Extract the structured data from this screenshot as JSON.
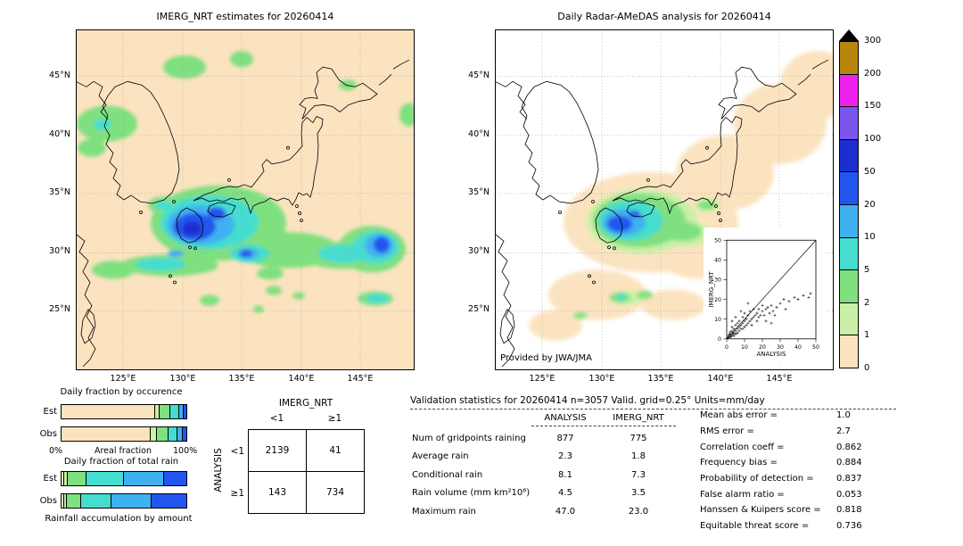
{
  "axes": {
    "lon_labels": [
      "125°E",
      "130°E",
      "135°E",
      "140°E",
      "145°E"
    ],
    "lat_labels": [
      "45°N",
      "40°N",
      "35°N",
      "30°N",
      "25°N"
    ]
  },
  "colorbar": {
    "labels": [
      "300",
      "200",
      "150",
      "100",
      "50",
      "20",
      "10",
      "5",
      "2",
      "1",
      "0"
    ],
    "colors_bottom_to_top": [
      "#fbe3c0",
      "#c9f0a6",
      "#7fe07f",
      "#45ddcf",
      "#3fb0f0",
      "#2255ee",
      "#1b2fd0",
      "#7a55ee",
      "#ee22ee",
      "#b8860b"
    ],
    "over_color": "#000000"
  },
  "validation": {
    "title": "Validation statistics for 20260414  n=3057 Valid. grid=0.25° Units=mm/day",
    "col_headers": [
      "ANALYSIS",
      "IMERG_NRT"
    ],
    "rows": [
      [
        "Num of gridpoints raining",
        "877",
        "775"
      ],
      [
        "Average rain",
        "2.3",
        "1.8"
      ],
      [
        "Conditional rain",
        "8.1",
        "7.3"
      ],
      [
        "Rain volume (mm km²10⁶)",
        "4.5",
        "3.5"
      ],
      [
        "Maximum rain",
        "47.0",
        "23.0"
      ]
    ],
    "scores": [
      [
        "Mean abs error =",
        "1.0"
      ],
      [
        "RMS error =",
        "2.7"
      ],
      [
        "Correlation coeff =",
        "0.862"
      ],
      [
        "Frequency bias =",
        "0.884"
      ],
      [
        "Probability of detection =",
        "0.837"
      ],
      [
        "False alarm ratio =",
        "0.053"
      ],
      [
        "Hanssen & Kuipers score =",
        "0.818"
      ],
      [
        "Equitable threat score =",
        "0.736"
      ]
    ]
  },
  "chart_data": [
    {
      "type": "heatmap",
      "name": "imerg-precip-map",
      "title": "IMERG_NRT estimates for 20260414",
      "lon_range": [
        121,
        149.7
      ],
      "lat_range": [
        20,
        49
      ],
      "levels_mm_per_day": [
        0,
        1,
        2,
        5,
        10,
        20,
        50,
        100,
        150,
        200,
        300
      ],
      "blob_format": "[cx,cy,rx,ry,level] in 380x380 map px",
      "blobs": [
        [
          35,
          105,
          34,
          20,
          2
        ],
        [
          18,
          132,
          16,
          10,
          2
        ],
        [
          122,
          42,
          24,
          13,
          2
        ],
        [
          186,
          33,
          13,
          9,
          2
        ],
        [
          305,
          62,
          10,
          6,
          2
        ],
        [
          374,
          95,
          11,
          13,
          2
        ],
        [
          100,
          196,
          19,
          10,
          2
        ],
        [
          160,
          216,
          76,
          42,
          2
        ],
        [
          238,
          246,
          58,
          20,
          2
        ],
        [
          300,
          252,
          46,
          15,
          2
        ],
        [
          105,
          263,
          55,
          12,
          2
        ],
        [
          42,
          268,
          24,
          10,
          2
        ],
        [
          332,
          245,
          38,
          26,
          2
        ],
        [
          218,
          272,
          15,
          7,
          2
        ],
        [
          150,
          302,
          11,
          6,
          2
        ],
        [
          222,
          291,
          9,
          5,
          2
        ],
        [
          250,
          297,
          7,
          4,
          2
        ],
        [
          205,
          312,
          6,
          4,
          2
        ],
        [
          336,
          300,
          20,
          8,
          2
        ],
        [
          30,
          106,
          10,
          6,
          5
        ],
        [
          98,
          196,
          9,
          5,
          5
        ],
        [
          150,
          215,
          55,
          30,
          5
        ],
        [
          95,
          262,
          28,
          7,
          5
        ],
        [
          300,
          250,
          28,
          10,
          5
        ],
        [
          195,
          250,
          22,
          10,
          5
        ],
        [
          336,
          243,
          26,
          18,
          5
        ],
        [
          338,
          300,
          13,
          5,
          5
        ],
        [
          140,
          218,
          38,
          22,
          10
        ],
        [
          112,
          250,
          9,
          4,
          10
        ],
        [
          193,
          250,
          12,
          6,
          10
        ],
        [
          340,
          241,
          16,
          13,
          10
        ],
        [
          133,
          220,
          24,
          15,
          20
        ],
        [
          158,
          205,
          10,
          7,
          20
        ],
        [
          191,
          250,
          7,
          4,
          20
        ],
        [
          343,
          240,
          9,
          9,
          20
        ],
        [
          130,
          222,
          11,
          8,
          50
        ]
      ]
    },
    {
      "type": "heatmap",
      "name": "radar-amedas-map",
      "title": "Daily Radar-AMeDAS analysis for 20260414",
      "note": "Provided by JWA/JMA",
      "lon_range": [
        121,
        149.7
      ],
      "lat_range": [
        20,
        49
      ],
      "levels_mm_per_day": [
        0,
        1,
        2,
        5,
        10,
        20,
        50,
        100,
        150,
        200,
        300
      ],
      "blob_format": "[cx,cy,rx,ry,level] in 380x380 map px",
      "blobs": [
        [
          175,
          215,
          98,
          56,
          0
        ],
        [
          258,
          160,
          55,
          42,
          0
        ],
        [
          320,
          105,
          52,
          45,
          0
        ],
        [
          362,
          62,
          42,
          38,
          0
        ],
        [
          230,
          252,
          48,
          26,
          0
        ],
        [
          115,
          296,
          55,
          28,
          0
        ],
        [
          68,
          330,
          30,
          17,
          0
        ],
        [
          200,
          307,
          36,
          17,
          0
        ],
        [
          165,
          214,
          62,
          36,
          1
        ],
        [
          215,
          228,
          28,
          14,
          1
        ],
        [
          148,
          299,
          18,
          8,
          1
        ],
        [
          238,
          196,
          14,
          8,
          1
        ],
        [
          162,
          213,
          52,
          30,
          2
        ],
        [
          210,
          225,
          22,
          11,
          2
        ],
        [
          140,
          299,
          12,
          6,
          2
        ],
        [
          168,
          296,
          9,
          5,
          2
        ],
        [
          96,
          319,
          8,
          4,
          2
        ],
        [
          238,
          196,
          10,
          5,
          2
        ],
        [
          152,
          213,
          36,
          22,
          5
        ],
        [
          142,
          298,
          6,
          3,
          5
        ],
        [
          145,
          215,
          24,
          15,
          10
        ],
        [
          140,
          217,
          14,
          9,
          20
        ],
        [
          157,
          206,
          6,
          4,
          20
        ]
      ]
    },
    {
      "type": "scatter",
      "name": "verification-scatter",
      "xlabel": "ANALYSIS",
      "ylabel": "IMERG_NRT",
      "xlim": [
        0,
        50
      ],
      "ylim": [
        0,
        50
      ],
      "ticks": [
        0,
        10,
        20,
        30,
        40,
        50
      ],
      "diagonal": true,
      "points": [
        [
          0.5,
          0.4
        ],
        [
          1,
          0.7
        ],
        [
          1,
          1.5
        ],
        [
          1.5,
          2.5
        ],
        [
          2,
          1
        ],
        [
          2,
          2
        ],
        [
          2,
          3.5
        ],
        [
          2.5,
          1.2
        ],
        [
          3,
          2
        ],
        [
          3,
          4
        ],
        [
          3,
          6
        ],
        [
          3,
          9
        ],
        [
          3.5,
          2.6
        ],
        [
          4,
          1.5
        ],
        [
          4,
          3
        ],
        [
          4,
          5
        ],
        [
          5,
          2.5
        ],
        [
          5,
          4
        ],
        [
          5,
          7
        ],
        [
          5,
          11
        ],
        [
          6,
          3
        ],
        [
          6,
          5
        ],
        [
          6,
          8
        ],
        [
          7,
          4
        ],
        [
          7,
          6
        ],
        [
          7,
          9
        ],
        [
          8,
          5
        ],
        [
          8,
          7
        ],
        [
          8,
          14
        ],
        [
          9,
          5
        ],
        [
          9,
          8
        ],
        [
          9,
          11
        ],
        [
          10,
          6
        ],
        [
          10,
          9
        ],
        [
          10,
          13
        ],
        [
          11,
          7
        ],
        [
          11,
          10
        ],
        [
          12,
          8
        ],
        [
          12,
          12
        ],
        [
          12,
          18
        ],
        [
          13,
          9
        ],
        [
          13,
          14
        ],
        [
          14,
          10
        ],
        [
          14,
          7
        ],
        [
          15,
          11
        ],
        [
          15,
          15
        ],
        [
          16,
          12
        ],
        [
          17,
          9
        ],
        [
          17,
          13
        ],
        [
          18,
          11
        ],
        [
          18,
          15
        ],
        [
          19,
          12
        ],
        [
          20,
          14
        ],
        [
          20,
          17
        ],
        [
          21,
          12
        ],
        [
          22,
          15
        ],
        [
          22,
          9
        ],
        [
          23,
          16
        ],
        [
          24,
          13
        ],
        [
          25,
          17
        ],
        [
          25,
          8
        ],
        [
          26,
          14
        ],
        [
          27,
          12
        ],
        [
          28,
          16
        ],
        [
          30,
          18
        ],
        [
          32,
          20
        ],
        [
          33,
          15
        ],
        [
          35,
          19
        ],
        [
          38,
          21
        ],
        [
          40,
          20
        ],
        [
          43,
          22
        ],
        [
          46,
          21
        ],
        [
          47,
          23
        ]
      ]
    },
    {
      "type": "bar",
      "stacked": true,
      "name": "daily-fraction-by-occurrence",
      "title": "Daily fraction by occurence",
      "categories": [
        "Est",
        "Obs"
      ],
      "axis": {
        "min": "0%",
        "label": "Areal fraction",
        "max": "100%"
      },
      "series": [
        {
          "level": 0,
          "range_mm": "0-1",
          "values": [
            74.7,
            71.3
          ]
        },
        {
          "level": 1,
          "range_mm": "1-2",
          "values": [
            4,
            5
          ]
        },
        {
          "level": 2,
          "range_mm": "2-5",
          "values": [
            8.3,
            9.2
          ]
        },
        {
          "level": 5,
          "range_mm": "5-10",
          "values": [
            7,
            7.5
          ]
        },
        {
          "level": 10,
          "range_mm": "10-20",
          "values": [
            4,
            4.5
          ]
        },
        {
          "level": 20,
          "range_mm": "20-50",
          "values": [
            2,
            2.5
          ]
        }
      ]
    },
    {
      "type": "bar",
      "stacked": true,
      "name": "daily-fraction-of-total-rain",
      "title": "Daily fraction of total rain",
      "caption": "Rainfall accumulation by amount",
      "categories": [
        "Est",
        "Obs"
      ],
      "series": [
        {
          "level": 0,
          "range_mm": "0-1",
          "values": [
            2,
            2
          ]
        },
        {
          "level": 1,
          "range_mm": "1-2",
          "values": [
            3,
            2
          ]
        },
        {
          "level": 2,
          "range_mm": "2-5",
          "values": [
            15,
            12
          ]
        },
        {
          "level": 5,
          "range_mm": "5-10",
          "values": [
            30,
            24
          ]
        },
        {
          "level": 10,
          "range_mm": "10-20",
          "values": [
            32,
            32
          ]
        },
        {
          "level": 20,
          "range_mm": "20-50",
          "values": [
            18,
            28
          ]
        }
      ]
    },
    {
      "type": "table",
      "name": "contingency-table",
      "col_header": "IMERG_NRT",
      "row_header": "ANALYSIS",
      "col_labels": [
        "<1",
        "≥1"
      ],
      "row_labels": [
        "<1",
        "≥1"
      ],
      "values": [
        [
          "2139",
          "41"
        ],
        [
          "143",
          "734"
        ]
      ]
    }
  ]
}
